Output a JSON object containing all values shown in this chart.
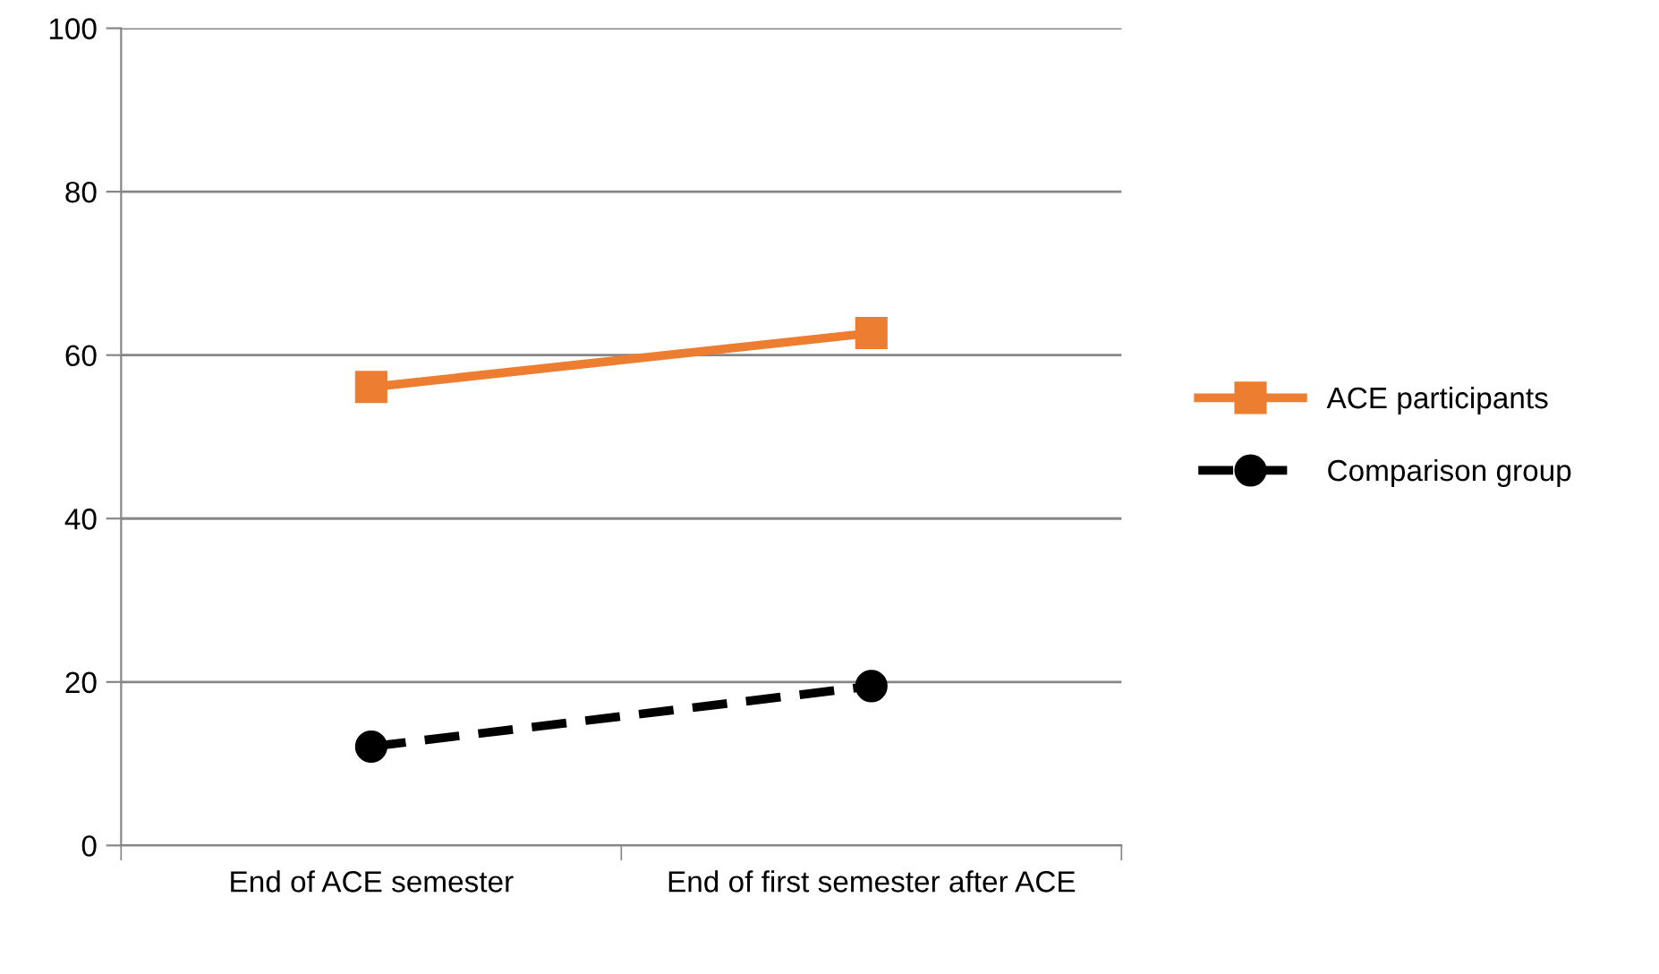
{
  "chart_data": {
    "type": "line",
    "categories": [
      "End of ACE semester",
      "End of first semester after ACE"
    ],
    "series": [
      {
        "name": "ACE participants",
        "color": "#ed7d31",
        "values": [
          56.1,
          62.7
        ],
        "marker": "square",
        "line_style": "solid"
      },
      {
        "name": "Comparison group",
        "color": "#000000",
        "values": [
          12.1,
          19.5
        ],
        "marker": "circle",
        "line_style": "dashed"
      }
    ],
    "ylim": [
      0,
      100
    ],
    "yticks": [
      0,
      20,
      40,
      60,
      80,
      100
    ],
    "grid": "y",
    "legend": "right"
  }
}
